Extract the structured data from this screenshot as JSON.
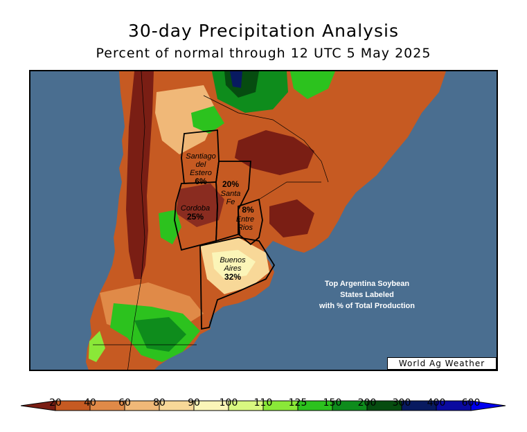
{
  "title": "30-day Precipitation Analysis",
  "subtitle": "Percent of normal through 12 UTC 5 May 2025",
  "states": [
    {
      "name_lines": [
        "Santiago",
        "del",
        "Estero"
      ],
      "percent": "6%"
    },
    {
      "name_lines": [
        "Santa",
        "Fe"
      ],
      "percent": "20%"
    },
    {
      "name_lines": [
        "Cordoba"
      ],
      "percent": "25%"
    },
    {
      "name_lines": [
        "Entre",
        "Rios"
      ],
      "percent": "8%"
    },
    {
      "name_lines": [
        "Buenos",
        "Aires"
      ],
      "percent": "32%"
    }
  ],
  "note_lines": [
    "Top Argentina Soybean",
    "States Labeled",
    "with % of Total Production"
  ],
  "credit": "World Ag Weather",
  "legend": {
    "ticks": [
      "20",
      "40",
      "60",
      "80",
      "90",
      "100",
      "110",
      "125",
      "150",
      "200",
      "300",
      "400",
      "600"
    ],
    "colors": [
      "#7a1e14",
      "#c65a22",
      "#e08a48",
      "#f0b878",
      "#f8d898",
      "#fbf5b8",
      "#d8f880",
      "#8ae838",
      "#2cc21e",
      "#0e8c1c",
      "#064c10",
      "#081a60",
      "#0a0aa0",
      "#0000f0"
    ]
  },
  "colors": {
    "ocean": "#4a6e90",
    "deep_dry": "#7a1e14",
    "dry": "#c65a22"
  }
}
